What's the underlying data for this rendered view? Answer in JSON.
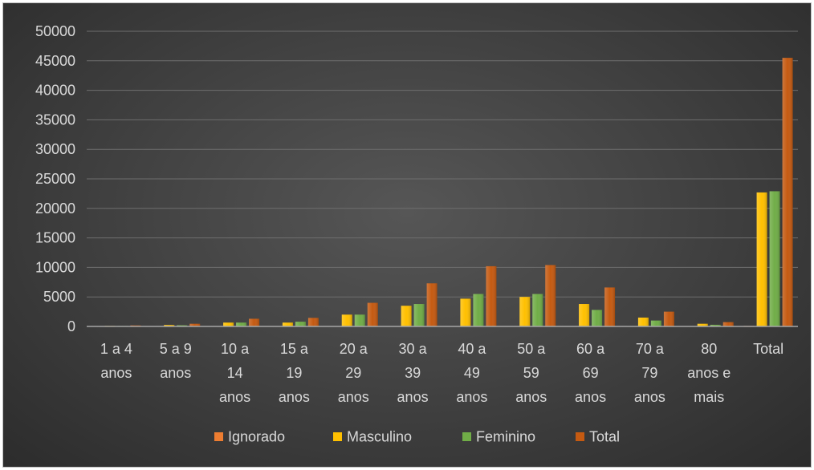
{
  "chart_data": {
    "type": "bar",
    "title": "",
    "xlabel": "",
    "ylabel": "",
    "ylim": [
      0,
      50000
    ],
    "yticks": [
      0,
      5000,
      10000,
      15000,
      20000,
      25000,
      30000,
      35000,
      40000,
      45000,
      50000
    ],
    "grid": true,
    "legend_position": "bottom",
    "categories": [
      [
        "1 a 4",
        "anos"
      ],
      [
        "5 a 9",
        "anos"
      ],
      [
        "10 a",
        "14",
        "anos"
      ],
      [
        "15 a",
        "19",
        "anos"
      ],
      [
        "20 a",
        "29",
        "anos"
      ],
      [
        "30 a",
        "39",
        "anos"
      ],
      [
        "40 a",
        "49",
        "anos"
      ],
      [
        "50 a",
        "59",
        "anos"
      ],
      [
        "60 a",
        "69",
        "anos"
      ],
      [
        "70 a",
        "79",
        "anos"
      ],
      [
        "80",
        "anos e",
        "mais"
      ],
      [
        "Total"
      ]
    ],
    "series": [
      {
        "name": "Ignorado",
        "color": "#ed7d31",
        "values": [
          0,
          0,
          0,
          0,
          10,
          10,
          10,
          10,
          30,
          10,
          0,
          90
        ]
      },
      {
        "name": "Masculino",
        "color": "#ffc000",
        "values": [
          90,
          250,
          650,
          650,
          2000,
          3500,
          4700,
          5000,
          3800,
          1500,
          450,
          22700
        ]
      },
      {
        "name": "Feminino",
        "color": "#70ad47",
        "values": [
          80,
          200,
          650,
          800,
          2000,
          3800,
          5500,
          5500,
          2800,
          1000,
          280,
          22900
        ]
      },
      {
        "name": "Total",
        "color": "#c55a11",
        "values": [
          170,
          450,
          1300,
          1450,
          4000,
          7300,
          10200,
          10400,
          6600,
          2500,
          730,
          45500
        ]
      }
    ]
  }
}
